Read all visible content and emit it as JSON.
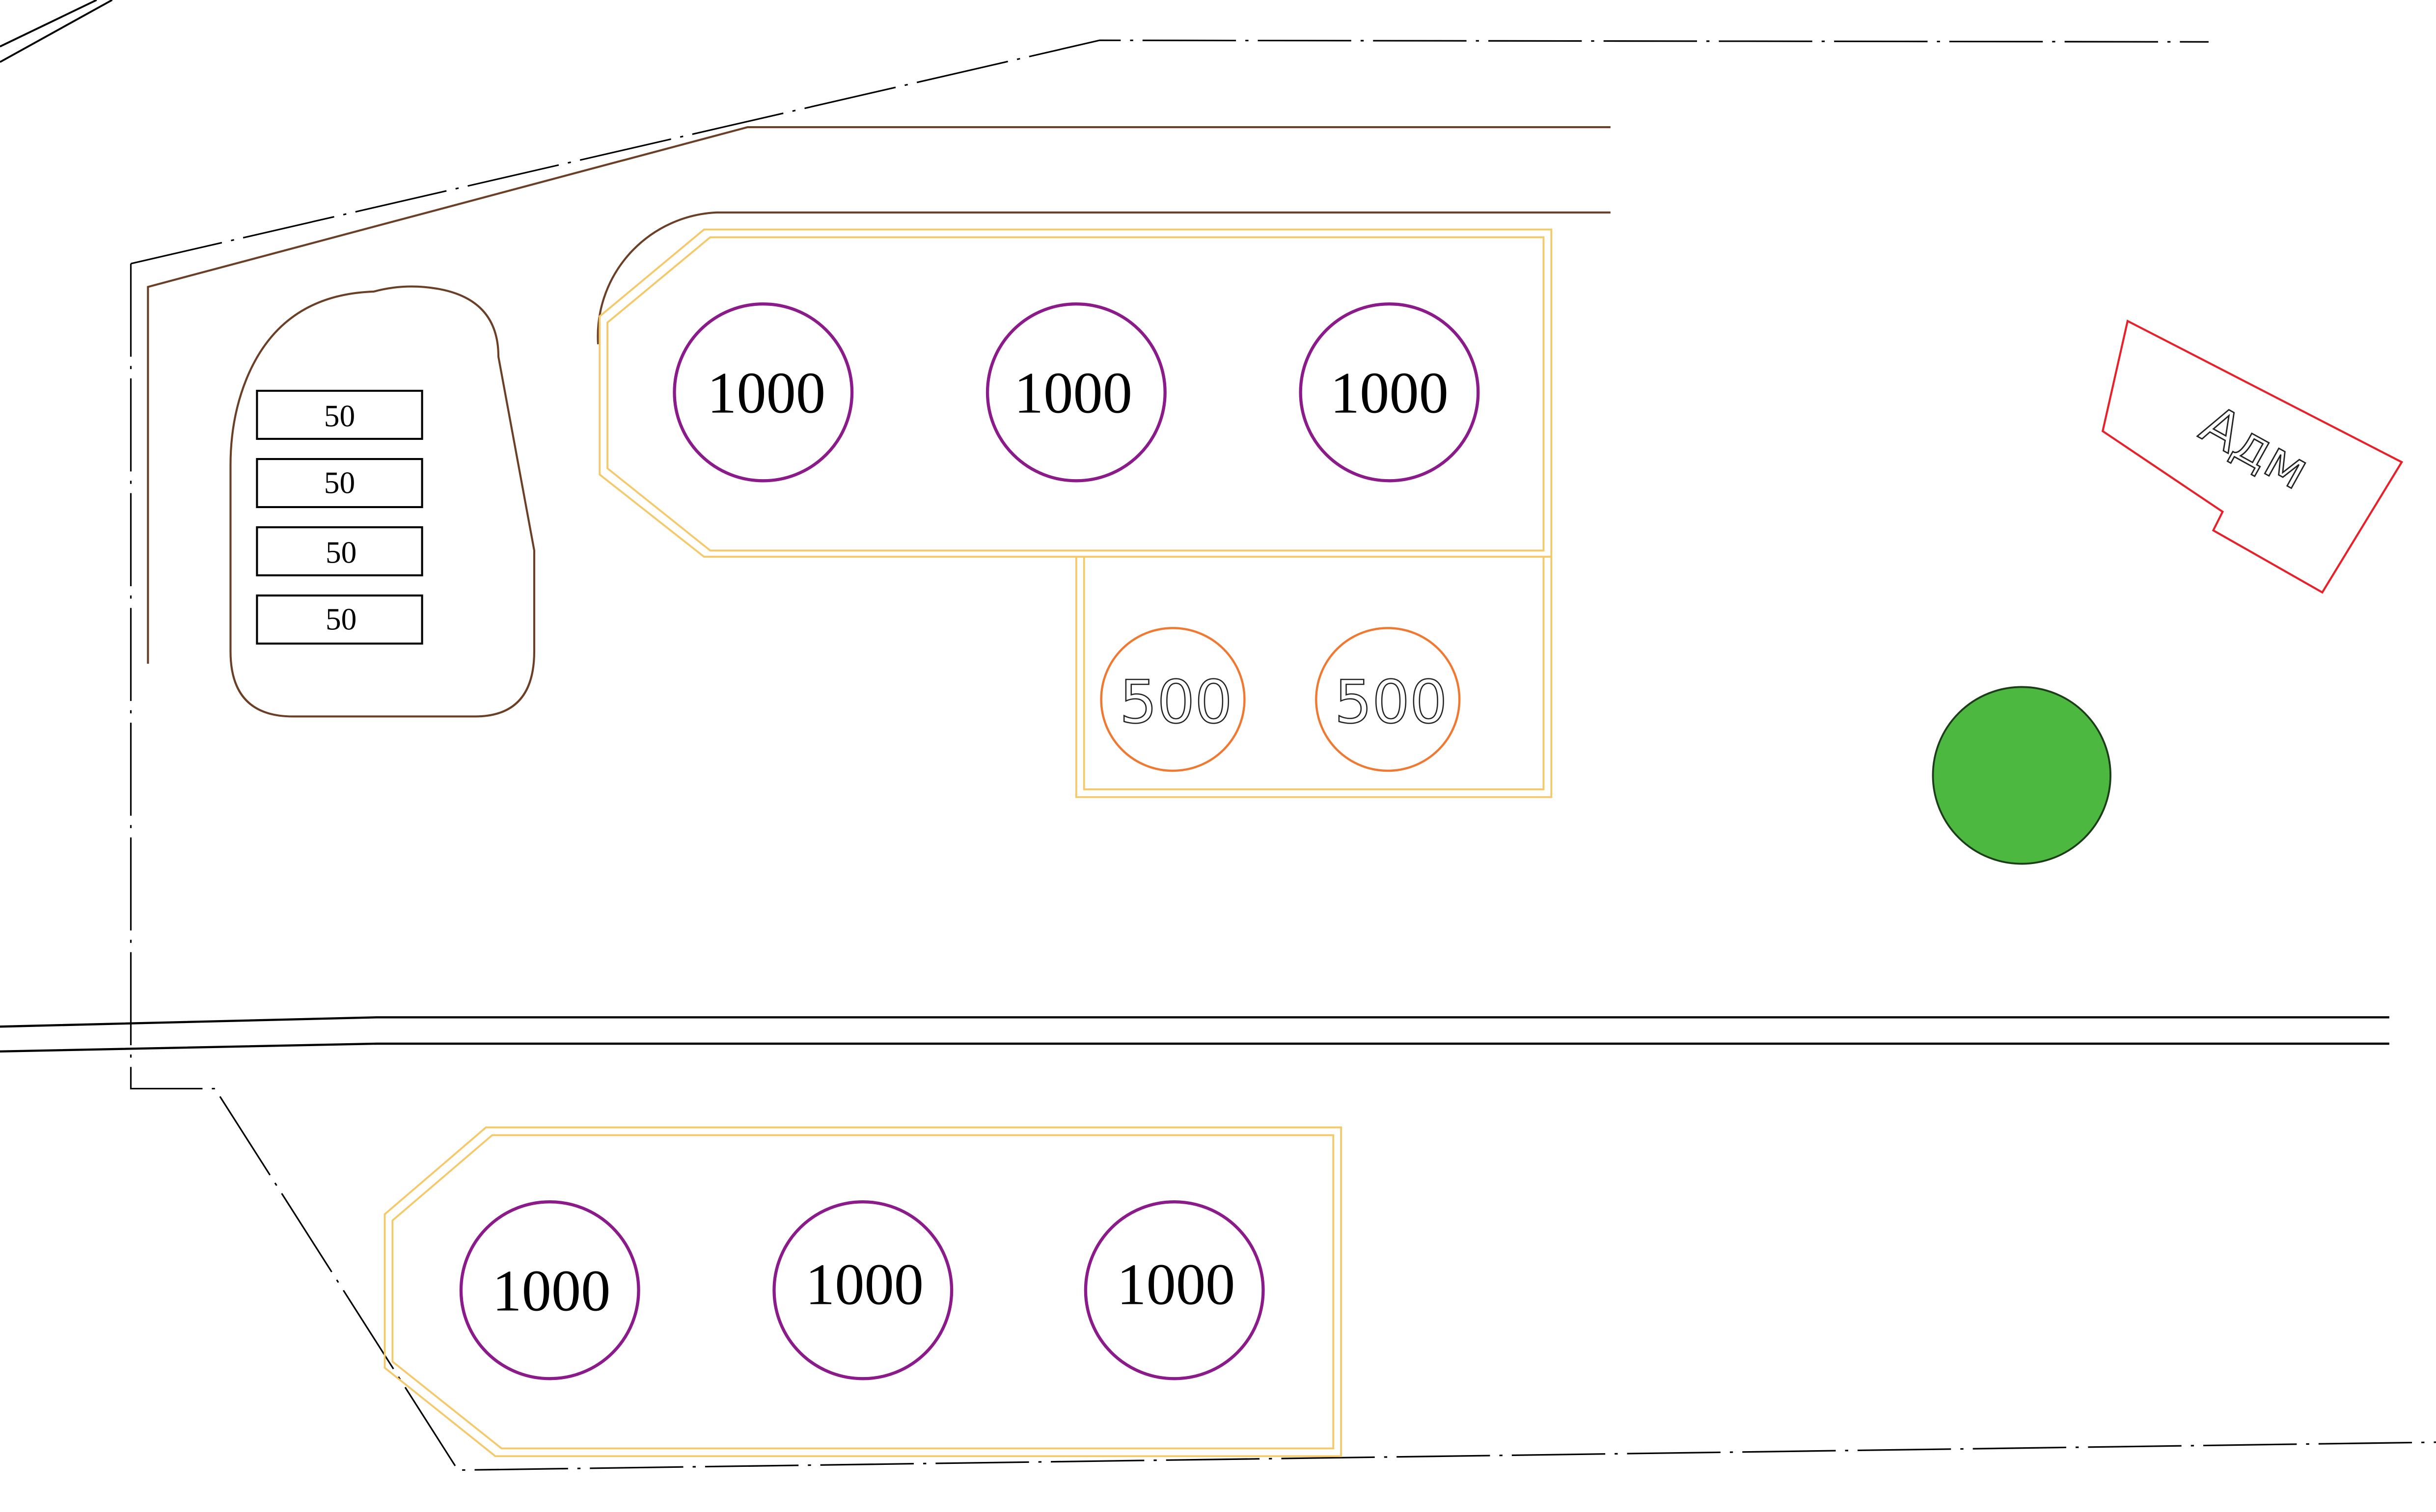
{
  "diagram": {
    "large_tanks": [
      {
        "label": "1000"
      },
      {
        "label": "1000"
      },
      {
        "label": "1000"
      },
      {
        "label": "1000"
      },
      {
        "label": "1000"
      },
      {
        "label": "1000"
      }
    ],
    "medium_tanks": [
      {
        "label": "500"
      },
      {
        "label": "500"
      }
    ],
    "small_tanks": [
      {
        "label": "50"
      },
      {
        "label": "50"
      },
      {
        "label": "50"
      },
      {
        "label": "50"
      }
    ],
    "admin_building": {
      "label": "Адм"
    },
    "colors": {
      "boundary": "#000000",
      "road_edge": "#6b3e26",
      "bund": "#f5c96a",
      "tank_1000": "#8b1a8b",
      "tank_500": "#f07830",
      "admin_building": "#e8202a",
      "tree": "#4cb840",
      "road": "#000000"
    }
  }
}
